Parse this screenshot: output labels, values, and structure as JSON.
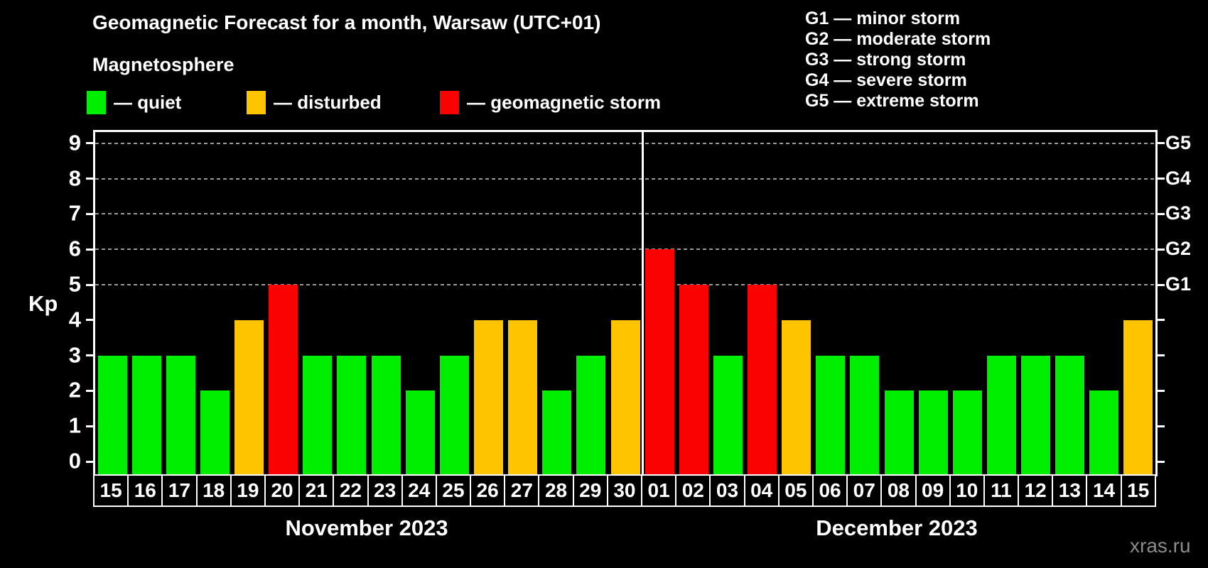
{
  "header": {
    "title": "Geomagnetic Forecast for a month, Warsaw (UTC+01)",
    "subtitle": "Magnetosphere"
  },
  "legend": {
    "items": [
      {
        "key": "quiet",
        "label": "— quiet",
        "color": "#00ee00"
      },
      {
        "key": "disturbed",
        "label": "— disturbed",
        "color": "#ffc400"
      },
      {
        "key": "storm",
        "label": "— geomagnetic storm",
        "color": "#fa0202"
      }
    ]
  },
  "g_legend": {
    "items": [
      "G1 — minor storm",
      "G2 — moderate storm",
      "G3 — strong storm",
      "G4 — severe storm",
      "G5 — extreme storm"
    ]
  },
  "axis": {
    "ylabel": "Kp"
  },
  "watermark": "xras.ru",
  "chart_data": {
    "type": "bar",
    "title": "Geomagnetic Forecast for a month, Warsaw (UTC+01)",
    "ylabel": "Kp",
    "ylim": [
      0,
      9.4
    ],
    "yticks": [
      0,
      1,
      2,
      3,
      4,
      5,
      6,
      7,
      8,
      9
    ],
    "gridlines_kp": [
      5,
      6,
      7,
      8,
      9
    ],
    "grid": "dashed horizontal at Kp 5-9",
    "right_axis": [
      {
        "label": "G1",
        "kp": 5
      },
      {
        "label": "G2",
        "kp": 6
      },
      {
        "label": "G3",
        "kp": 7
      },
      {
        "label": "G4",
        "kp": 8
      },
      {
        "label": "G5",
        "kp": 9
      }
    ],
    "level_colors": {
      "quiet": "#00ee00",
      "disturbed": "#ffc400",
      "storm": "#fa0202"
    },
    "months": [
      {
        "label": "November 2023",
        "days": [
          {
            "day": "15",
            "kp": 3,
            "level": "quiet"
          },
          {
            "day": "16",
            "kp": 3,
            "level": "quiet"
          },
          {
            "day": "17",
            "kp": 3,
            "level": "quiet"
          },
          {
            "day": "18",
            "kp": 2,
            "level": "quiet"
          },
          {
            "day": "19",
            "kp": 4,
            "level": "disturbed"
          },
          {
            "day": "20",
            "kp": 5,
            "level": "storm"
          },
          {
            "day": "21",
            "kp": 3,
            "level": "quiet"
          },
          {
            "day": "22",
            "kp": 3,
            "level": "quiet"
          },
          {
            "day": "23",
            "kp": 3,
            "level": "quiet"
          },
          {
            "day": "24",
            "kp": 2,
            "level": "quiet"
          },
          {
            "day": "25",
            "kp": 3,
            "level": "quiet"
          },
          {
            "day": "26",
            "kp": 4,
            "level": "disturbed"
          },
          {
            "day": "27",
            "kp": 4,
            "level": "disturbed"
          },
          {
            "day": "28",
            "kp": 2,
            "level": "quiet"
          },
          {
            "day": "29",
            "kp": 3,
            "level": "quiet"
          },
          {
            "day": "30",
            "kp": 4,
            "level": "disturbed"
          }
        ]
      },
      {
        "label": "December 2023",
        "days": [
          {
            "day": "01",
            "kp": 6,
            "level": "storm"
          },
          {
            "day": "02",
            "kp": 5,
            "level": "storm"
          },
          {
            "day": "03",
            "kp": 3,
            "level": "quiet"
          },
          {
            "day": "04",
            "kp": 5,
            "level": "storm"
          },
          {
            "day": "05",
            "kp": 4,
            "level": "disturbed"
          },
          {
            "day": "06",
            "kp": 3,
            "level": "quiet"
          },
          {
            "day": "07",
            "kp": 3,
            "level": "quiet"
          },
          {
            "day": "08",
            "kp": 2,
            "level": "quiet"
          },
          {
            "day": "09",
            "kp": 2,
            "level": "quiet"
          },
          {
            "day": "10",
            "kp": 2,
            "level": "quiet"
          },
          {
            "day": "11",
            "kp": 3,
            "level": "quiet"
          },
          {
            "day": "12",
            "kp": 3,
            "level": "quiet"
          },
          {
            "day": "13",
            "kp": 3,
            "level": "quiet"
          },
          {
            "day": "14",
            "kp": 2,
            "level": "quiet"
          },
          {
            "day": "15",
            "kp": 4,
            "level": "disturbed"
          }
        ]
      }
    ]
  }
}
